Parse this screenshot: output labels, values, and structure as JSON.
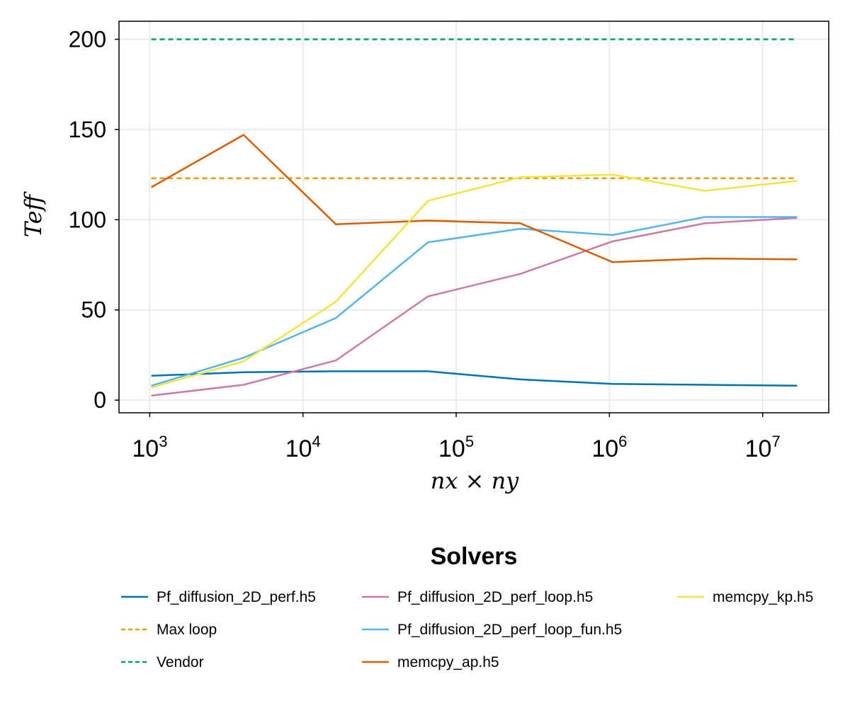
{
  "chart_data": {
    "type": "line",
    "xscale": "log",
    "xlim": [
      630,
      27000000
    ],
    "ylim": [
      -7,
      210
    ],
    "grid": true,
    "xlabel": "nx × ny",
    "ylabel": "Teff",
    "x_ticks": [
      {
        "base": "10",
        "exp": "3",
        "value": 1000
      },
      {
        "base": "10",
        "exp": "4",
        "value": 10000
      },
      {
        "base": "10",
        "exp": "5",
        "value": 100000
      },
      {
        "base": "10",
        "exp": "6",
        "value": 1000000
      },
      {
        "base": "10",
        "exp": "7",
        "value": 10000000
      }
    ],
    "y_ticks": [
      {
        "label": "0",
        "value": 0
      },
      {
        "label": "50",
        "value": 50
      },
      {
        "label": "100",
        "value": 100
      },
      {
        "label": "150",
        "value": 150
      },
      {
        "label": "200",
        "value": 200
      }
    ],
    "legend": {
      "title": "Solvers",
      "position": "bottom"
    },
    "x": [
      1024,
      4096,
      16384,
      65536,
      262144,
      1048576,
      4194304,
      16777216
    ],
    "series": [
      {
        "name": "Pf_diffusion_2D_perf.h5",
        "color": "#0072B2",
        "style": "solid",
        "values": [
          13.5,
          15.5,
          16,
          16,
          11.5,
          9,
          8.5,
          8
        ]
      },
      {
        "name": "Max loop",
        "color": "#E69F00",
        "style": "dashed",
        "values": [
          123,
          123,
          123,
          123,
          123,
          123,
          123,
          123
        ]
      },
      {
        "name": "Vendor",
        "color": "#009E73",
        "style": "dashed",
        "values": [
          200,
          200,
          200,
          200,
          200,
          200,
          200,
          200
        ]
      },
      {
        "name": "Pf_diffusion_2D_perf_loop.h5",
        "color": "#CC79A7",
        "style": "solid",
        "values": [
          2.5,
          8.5,
          22,
          57.5,
          70,
          88,
          98,
          101
        ]
      },
      {
        "name": "Pf_diffusion_2D_perf_loop_fun.h5",
        "color": "#56B4E9",
        "style": "solid",
        "values": [
          8,
          23.5,
          45.5,
          87.5,
          95,
          91.5,
          101.5,
          101.5
        ]
      },
      {
        "name": "memcpy_ap.h5",
        "color": "#D55E00",
        "style": "solid",
        "values": [
          118,
          147,
          97.5,
          99.5,
          98,
          76.5,
          78.5,
          78
        ]
      },
      {
        "name": "memcpy_kp.h5",
        "color": "#F0E442",
        "style": "solid",
        "values": [
          7,
          21.5,
          54.5,
          110.5,
          123.5,
          125,
          116,
          121.5
        ]
      }
    ]
  }
}
